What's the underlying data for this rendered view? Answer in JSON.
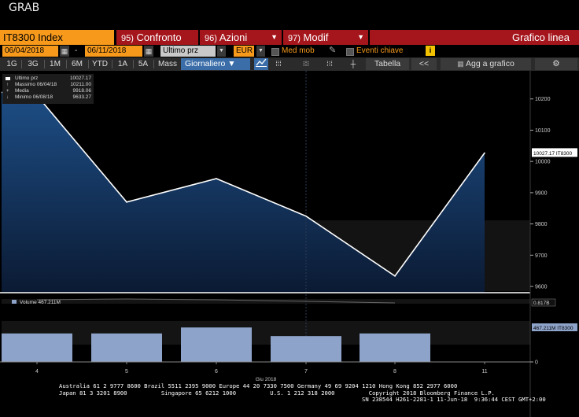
{
  "window": {
    "title": "GRAB"
  },
  "header": {
    "ticker": "IT8300 Index",
    "menus": [
      {
        "num": "95)",
        "label": "Confronto"
      },
      {
        "num": "96)",
        "label": "Azioni"
      },
      {
        "num": "97)",
        "label": "Modif"
      }
    ],
    "chart_title": "Grafico linea"
  },
  "controls": {
    "start_date": "06/04/2018",
    "end_date": "06/11/2018",
    "date_sep": "-",
    "field": "Ultimo prz",
    "currency": "EUR",
    "option_ma": "Med mob",
    "option_events": "Eventi chiave",
    "info_icon": "i"
  },
  "toolbar": {
    "periods": [
      "1G",
      "3G",
      "1M",
      "6M",
      "YTD",
      "1A",
      "5A",
      "Mass"
    ],
    "frequency": "Giornaliero",
    "table_label": "Tabella",
    "collapse_label": "<<",
    "add_label": "Agg a grafico",
    "settings_icon": "gear-icon"
  },
  "legend": {
    "rows": [
      {
        "label": "Ultimo prz",
        "value": "10027.17"
      },
      {
        "label": "Massimo 06/04/18",
        "value": "10211.00"
      },
      {
        "label": "Media",
        "value": "9918.06"
      },
      {
        "label": "Minimo 06/08/18",
        "value": "9633.27"
      }
    ]
  },
  "volume_legend": {
    "label": "Volume 467.211M"
  },
  "price_tag": "10027.17 IT8300",
  "volume_tag_top": "0.817B",
  "volume_tag": "467.211M IT8300",
  "chart_data": [
    {
      "type": "area",
      "x": [
        "4",
        "5",
        "6",
        "7",
        "8",
        "11"
      ],
      "x_group_label": "Giu 2018",
      "series": [
        {
          "name": "Ultimo prz",
          "values": [
            10211.0,
            9870.0,
            9945.0,
            9825.0,
            9633.27,
            10027.17
          ]
        }
      ],
      "yticks": [
        10200,
        10100,
        10000,
        9900,
        9800,
        9700,
        9600
      ],
      "ylim": [
        9580,
        10290
      ]
    },
    {
      "type": "bar",
      "categories": [
        "4",
        "5",
        "6",
        "7",
        "8"
      ],
      "series": [
        {
          "name": "Volume",
          "values": [
            0.43,
            0.43,
            0.52,
            0.39,
            0.43
          ]
        }
      ],
      "yticks": [
        0
      ],
      "ylim": [
        0,
        0.95
      ]
    }
  ],
  "footer": {
    "line1": "Australia 61 2 9777 8600 Brazil 5511 2395 9000 Europe 44 20 7330 7500 Germany 49 69 9204 1210 Hong Kong 852 2977 6000",
    "line2": "Japan 81 3 3201 8900          Singapore 65 6212 1000          U.S. 1 212 318 2000          Copyright 2018 Bloomberg Finance L.P.",
    "line3": "SN 238544 H261-2281-1 11-Jun-18  9:36:44 CEST GMT+2:00"
  }
}
